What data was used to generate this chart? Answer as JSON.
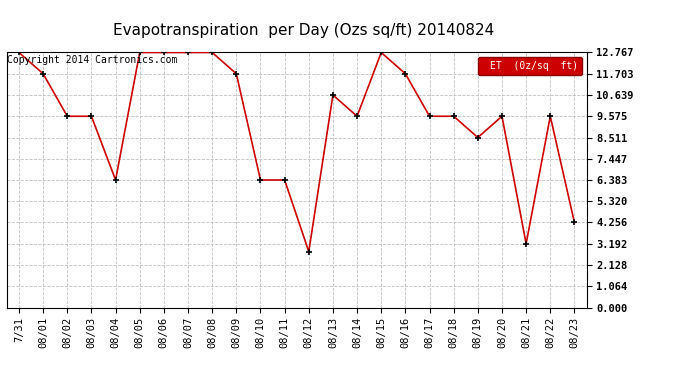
{
  "title": "Evapotranspiration  per Day (Ozs sq/ft) 20140824",
  "copyright": "Copyright 2014 Cartronics.com",
  "legend_label": "ET  (0z/sq  ft)",
  "x_labels": [
    "7/31",
    "08/01",
    "08/02",
    "08/03",
    "08/04",
    "08/05",
    "08/06",
    "08/07",
    "08/08",
    "08/09",
    "08/10",
    "08/11",
    "08/12",
    "08/13",
    "08/14",
    "08/15",
    "08/16",
    "08/17",
    "08/18",
    "08/19",
    "08/20",
    "08/21",
    "08/22",
    "08/23"
  ],
  "y_values": [
    12.767,
    11.703,
    9.575,
    9.575,
    6.383,
    12.767,
    12.767,
    12.767,
    12.767,
    11.703,
    6.383,
    6.383,
    2.8,
    10.639,
    9.575,
    12.767,
    11.703,
    9.575,
    9.575,
    8.511,
    9.575,
    3.192,
    9.575,
    4.256
  ],
  "y_ticks": [
    0.0,
    1.064,
    2.128,
    3.192,
    4.256,
    5.32,
    6.383,
    7.447,
    8.511,
    9.575,
    10.639,
    11.703,
    12.767
  ],
  "y_min": 0.0,
  "y_max": 12.767,
  "line_color": "#cc0000",
  "marker_color": "#000000",
  "background_color": "#ffffff",
  "grid_color": "#c0c0c0",
  "legend_bg": "#cc0000",
  "legend_text_color": "#ffffff",
  "title_fontsize": 11,
  "copyright_fontsize": 7,
  "tick_fontsize": 7.5
}
